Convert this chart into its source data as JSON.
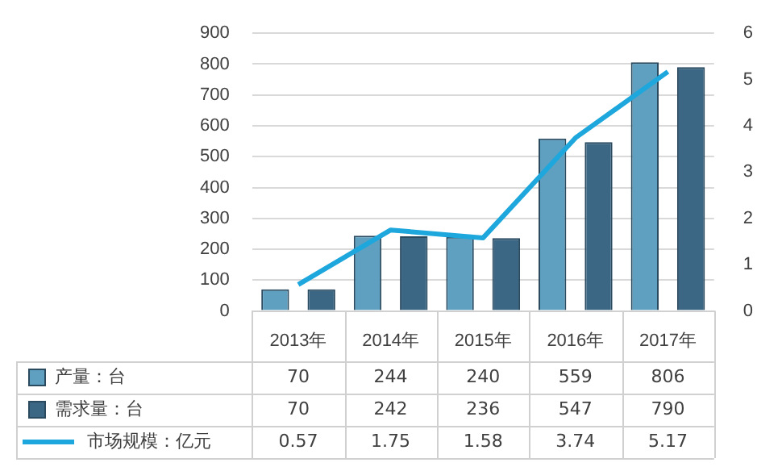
{
  "chart_data": {
    "type": "bar",
    "categories": [
      "2013年",
      "2014年",
      "2015年",
      "2016年",
      "2017年"
    ],
    "series": [
      {
        "name": "产量：台",
        "color": "#5f9fc0",
        "values": [
          70,
          244,
          240,
          559,
          806
        ]
      },
      {
        "name": "需求量：台",
        "color": "#3b6785",
        "values": [
          70,
          242,
          236,
          547,
          790
        ],
        "value_labels": [
          "70",
          "242",
          "236",
          "547",
          "790"
        ]
      },
      {
        "name": "市场规模：亿元",
        "type": "line",
        "axis": "y2",
        "color": "#1ea7dc",
        "values": [
          0.57,
          1.75,
          1.58,
          3.74,
          5.17
        ]
      }
    ],
    "ylim": [
      0,
      900
    ],
    "yticks": [
      0,
      100,
      200,
      300,
      400,
      500,
      600,
      700,
      800,
      900
    ],
    "y2lim": [
      0,
      6
    ],
    "y2ticks": [
      0,
      1,
      2,
      3,
      4,
      5,
      6
    ],
    "grid": "y",
    "legend": "bottom",
    "data_labels": true,
    "marker": "none"
  }
}
